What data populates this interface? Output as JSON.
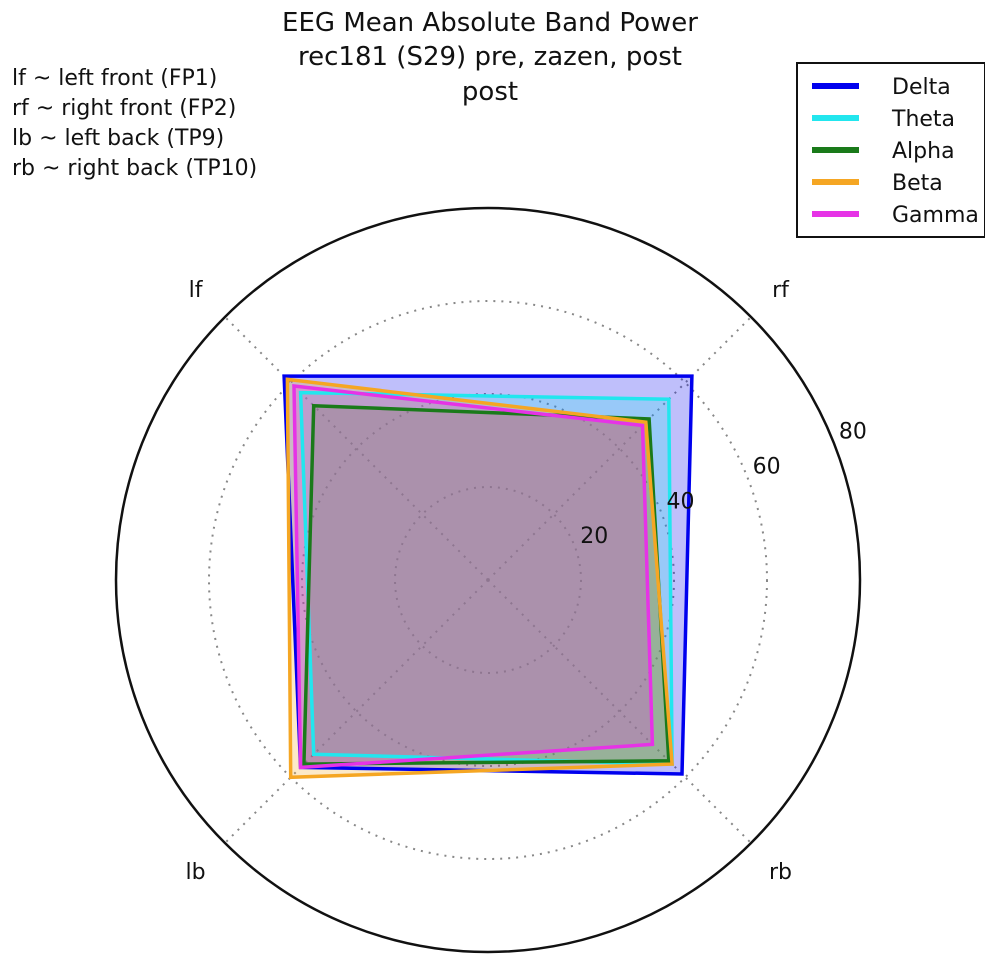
{
  "title_lines": [
    "EEG Mean Absolute Band Power",
    "rec181 (S29) pre, zazen, post",
    "post"
  ],
  "notes": [
    "lf ~ left front (FP1)",
    "rf ~ right front (FP2)",
    "lb ~ left back (TP9)",
    "rb ~ right back (TP10)"
  ],
  "colors": {
    "Delta": "#0000ee",
    "Theta": "#22e6ee",
    "Alpha": "#1a7a1a",
    "Beta": "#f5a623",
    "Gamma": "#e633e6"
  },
  "chart_data": {
    "type": "radar",
    "axes": [
      "lf",
      "rf",
      "rb",
      "lb"
    ],
    "radial_ticks": [
      20,
      40,
      60,
      80
    ],
    "rlim": [
      0,
      80
    ],
    "grid": true,
    "legend_position": "top-right",
    "series": [
      {
        "name": "Delta",
        "values": [
          62,
          62,
          59,
          57
        ]
      },
      {
        "name": "Theta",
        "values": [
          57,
          55,
          56,
          53
        ]
      },
      {
        "name": "Alpha",
        "values": [
          53,
          49,
          55,
          56
        ]
      },
      {
        "name": "Beta",
        "values": [
          61,
          48,
          56,
          60
        ]
      },
      {
        "name": "Gamma",
        "values": [
          59,
          47,
          50,
          57
        ]
      }
    ]
  }
}
